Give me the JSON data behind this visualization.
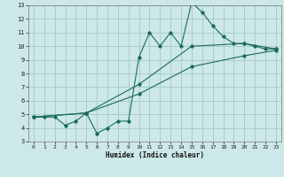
{
  "xlabel": "Humidex (Indice chaleur)",
  "background_color": "#cde8e8",
  "grid_color": "#aacccc",
  "line_color": "#1a6b5a",
  "xlim": [
    -0.5,
    23.5
  ],
  "ylim": [
    3,
    13
  ],
  "xticks": [
    0,
    1,
    2,
    3,
    4,
    5,
    6,
    7,
    8,
    9,
    10,
    11,
    12,
    13,
    14,
    15,
    16,
    17,
    18,
    19,
    20,
    21,
    22,
    23
  ],
  "yticks": [
    3,
    4,
    5,
    6,
    7,
    8,
    9,
    10,
    11,
    12,
    13
  ],
  "series1": [
    [
      0,
      4.8
    ],
    [
      1,
      4.8
    ],
    [
      2,
      4.8
    ],
    [
      3,
      4.2
    ],
    [
      4,
      4.5
    ],
    [
      5,
      5.1
    ],
    [
      6,
      3.6
    ],
    [
      7,
      4.0
    ],
    [
      8,
      4.5
    ],
    [
      9,
      4.5
    ],
    [
      10,
      9.2
    ],
    [
      11,
      11.0
    ],
    [
      12,
      10.0
    ],
    [
      13,
      11.0
    ],
    [
      14,
      10.0
    ],
    [
      15,
      13.2
    ],
    [
      16,
      12.5
    ],
    [
      17,
      11.5
    ],
    [
      18,
      10.7
    ],
    [
      19,
      10.2
    ],
    [
      20,
      10.2
    ],
    [
      21,
      10.0
    ],
    [
      22,
      9.8
    ],
    [
      23,
      9.8
    ]
  ],
  "series2": [
    [
      0,
      4.8
    ],
    [
      5,
      5.1
    ],
    [
      10,
      7.2
    ],
    [
      15,
      10.0
    ],
    [
      20,
      10.2
    ],
    [
      23,
      9.8
    ]
  ],
  "series3": [
    [
      0,
      4.8
    ],
    [
      5,
      5.1
    ],
    [
      10,
      6.5
    ],
    [
      15,
      8.5
    ],
    [
      20,
      9.3
    ],
    [
      23,
      9.7
    ]
  ]
}
